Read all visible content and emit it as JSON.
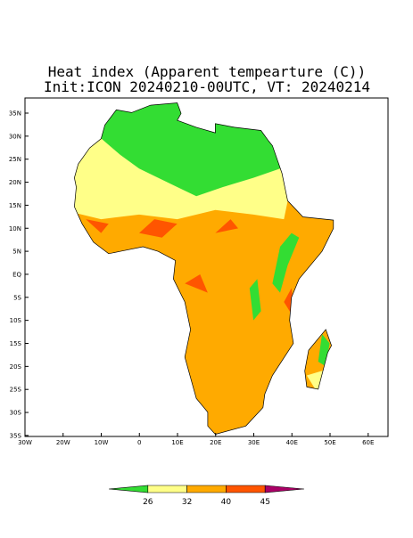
{
  "header": {
    "title": "Heat index (Apparent tempearture (C))",
    "subtitle": "Init:ICON 20240210-00UTC, VT: 20240214"
  },
  "map": {
    "lat_labels": [
      "35N",
      "30N",
      "25N",
      "20N",
      "15N",
      "10N",
      "5N",
      "EQ",
      "5S",
      "10S",
      "15S",
      "20S",
      "25S",
      "30S",
      "35S"
    ],
    "lon_labels": [
      "30W",
      "20W",
      "10W",
      "0",
      "10E",
      "20E",
      "30E",
      "40E",
      "50E",
      "60E"
    ]
  },
  "colorbar": {
    "labels": [
      "26",
      "32",
      "40",
      "45"
    ],
    "colors": [
      "#33dd33",
      "#ffff88",
      "#ffaa00",
      "#ff5500",
      "#aa0066"
    ]
  }
}
